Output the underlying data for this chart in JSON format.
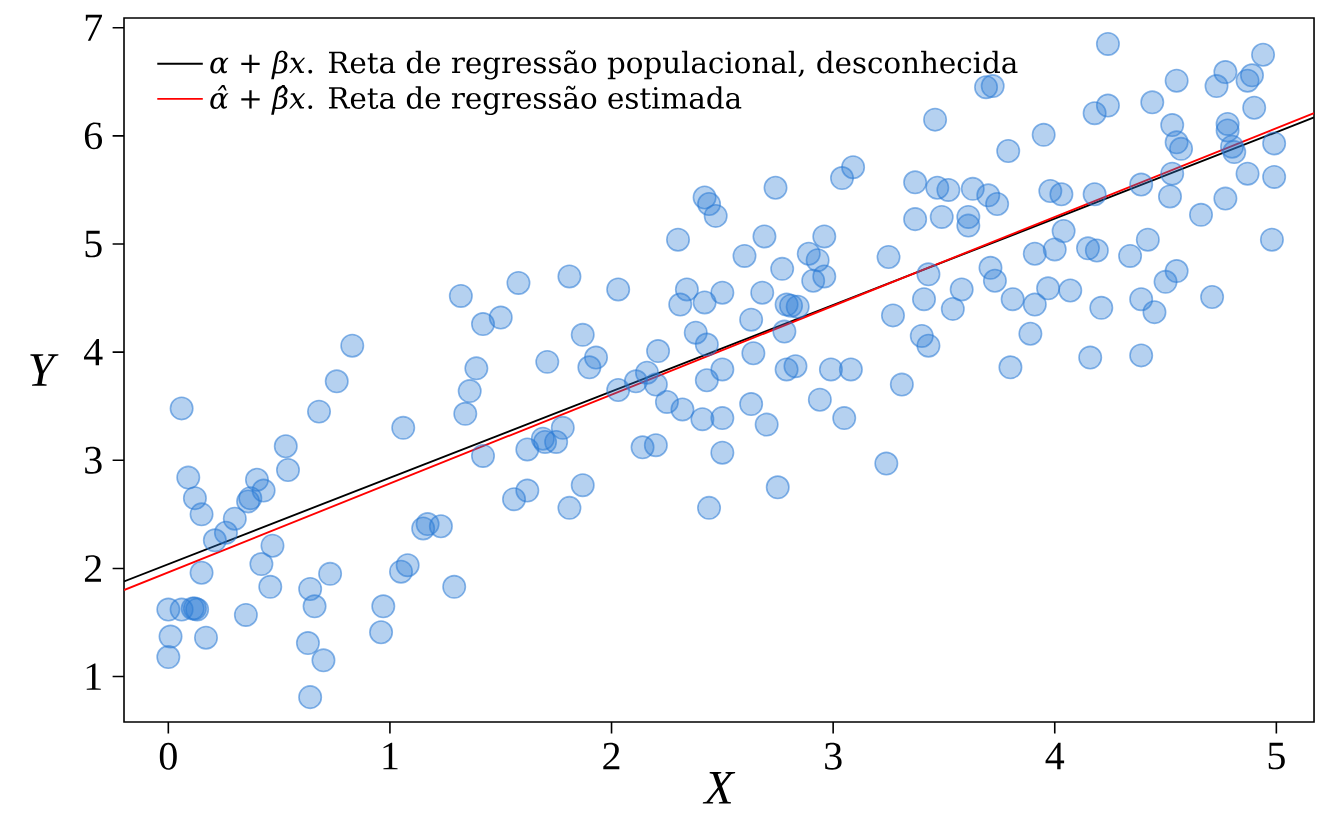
{
  "chart_data": {
    "type": "scatter",
    "xlabel": "X",
    "ylabel": "Y",
    "xlim": [
      -0.2,
      5.17
    ],
    "ylim": [
      0.58,
      7.09
    ],
    "xticks": [
      0,
      1,
      2,
      3,
      4,
      5
    ],
    "yticks": [
      1,
      2,
      3,
      4,
      5,
      6,
      7
    ],
    "legend": "top left",
    "line_style": "solid",
    "series": [
      {
        "color": "#2a7ad5",
        "x": [
          0.06,
          0.09,
          0.12,
          0.15,
          0.15,
          0.21,
          0.26,
          0.3,
          0.36,
          0.37,
          0.4,
          0.43,
          0.47,
          0.42,
          0.46,
          0.35,
          0.53,
          0.54,
          0.68,
          0.76,
          0.83,
          0.73,
          0.64,
          0.66,
          0.63,
          0.7,
          0.64,
          0.0,
          0.0,
          0.01,
          0.06,
          0.11,
          0.13,
          0.12,
          0.17,
          0.97,
          0.96,
          1.05,
          1.08,
          1.06,
          1.15,
          1.17,
          1.23,
          1.29,
          1.32,
          1.42,
          1.5,
          1.58,
          1.39,
          1.36,
          1.34,
          1.42,
          1.56,
          1.62,
          1.62,
          1.69,
          1.71,
          1.81,
          2.03,
          1.87,
          1.9,
          1.93,
          2.03,
          2.11,
          2.16,
          2.2,
          2.21,
          2.25,
          2.32,
          2.41,
          2.5,
          2.5,
          2.63,
          2.7,
          2.75,
          2.44,
          2.14,
          2.2,
          1.87,
          1.81,
          1.78,
          1.7,
          1.75,
          2.42,
          2.34,
          2.31,
          2.38,
          2.43,
          2.5,
          2.43,
          2.5,
          2.3,
          2.42,
          2.44,
          2.47,
          2.6,
          2.69,
          2.74,
          2.68,
          2.63,
          2.64,
          2.77,
          2.79,
          2.78,
          2.81,
          2.84,
          2.79,
          2.83,
          2.89,
          2.93,
          2.96,
          2.91,
          2.96,
          2.99,
          3.08,
          2.94,
          3.05,
          3.04,
          3.09,
          3.25,
          3.27,
          3.31,
          3.24,
          3.37,
          3.37,
          3.46,
          3.43,
          3.41,
          3.4,
          3.43,
          3.47,
          3.52,
          3.49,
          3.61,
          3.61,
          3.63,
          3.7,
          3.74,
          3.69,
          3.72,
          3.79,
          3.58,
          3.54,
          3.71,
          3.73,
          3.81,
          3.91,
          3.89,
          3.8,
          3.91,
          4.0,
          3.97,
          4.07,
          4.04,
          3.98,
          4.03,
          3.95,
          4.24,
          4.18,
          4.24,
          4.18,
          4.15,
          4.19,
          4.21,
          4.16,
          4.34,
          4.42,
          4.39,
          4.39,
          4.45,
          4.39,
          4.5,
          4.55,
          4.44,
          4.55,
          4.53,
          4.55,
          4.57,
          4.53,
          4.52,
          4.66,
          4.71,
          4.73,
          4.77,
          4.78,
          4.78,
          4.8,
          4.81,
          4.77,
          4.87,
          4.87,
          4.89,
          4.94,
          4.9,
          4.99,
          4.99,
          4.98
        ],
        "values": [
          3.48,
          2.84,
          2.65,
          2.5,
          1.96,
          2.26,
          2.33,
          2.46,
          2.62,
          2.65,
          2.82,
          2.72,
          2.21,
          2.04,
          1.83,
          1.57,
          3.13,
          2.91,
          3.45,
          3.73,
          4.06,
          1.95,
          1.81,
          1.65,
          1.31,
          1.15,
          0.81,
          1.62,
          1.18,
          1.37,
          1.62,
          1.63,
          1.62,
          1.63,
          1.36,
          1.65,
          1.41,
          1.97,
          2.03,
          3.3,
          2.37,
          2.41,
          2.39,
          1.83,
          4.52,
          4.26,
          4.32,
          4.64,
          3.85,
          3.64,
          3.43,
          3.04,
          2.64,
          2.72,
          3.1,
          3.2,
          3.91,
          4.7,
          4.58,
          4.16,
          3.86,
          3.95,
          3.65,
          3.73,
          3.81,
          3.7,
          4.01,
          3.54,
          3.47,
          3.38,
          3.39,
          3.07,
          3.52,
          3.33,
          2.75,
          2.56,
          3.12,
          3.14,
          2.77,
          2.56,
          3.3,
          3.17,
          3.17,
          4.46,
          4.58,
          4.44,
          4.18,
          4.07,
          3.84,
          3.74,
          4.55,
          5.04,
          5.43,
          5.37,
          5.26,
          4.89,
          5.07,
          5.52,
          4.55,
          4.3,
          3.99,
          4.77,
          4.44,
          4.19,
          4.43,
          4.42,
          3.84,
          3.87,
          4.91,
          4.85,
          5.07,
          4.66,
          4.7,
          3.84,
          3.84,
          3.56,
          3.39,
          5.61,
          5.71,
          4.88,
          4.34,
          3.7,
          2.97,
          5.57,
          5.23,
          6.15,
          4.72,
          4.49,
          4.15,
          4.06,
          5.52,
          5.5,
          5.25,
          5.25,
          5.17,
          5.51,
          5.45,
          5.37,
          6.45,
          6.46,
          5.86,
          4.58,
          4.4,
          4.78,
          4.66,
          4.49,
          4.44,
          4.17,
          3.86,
          4.91,
          4.95,
          4.59,
          4.57,
          5.12,
          5.49,
          5.46,
          6.01,
          6.85,
          6.21,
          6.28,
          5.46,
          4.96,
          4.94,
          4.41,
          3.95,
          4.89,
          5.04,
          5.55,
          4.49,
          4.37,
          3.97,
          4.65,
          4.75,
          6.31,
          6.51,
          6.1,
          5.94,
          5.88,
          5.65,
          5.44,
          5.27,
          4.51,
          6.46,
          6.59,
          6.11,
          6.05,
          5.9,
          5.85,
          5.42,
          5.65,
          6.51,
          6.56,
          6.75,
          6.26,
          5.93,
          5.62,
          5.04
        ]
      },
      {
        "type": "line",
        "name": "*α* + *βx*. Reta de regressão populacional, desconhecida",
        "color": "#000000",
        "marker": "none",
        "x": [
          -0.2,
          5.17
        ],
        "values": [
          1.88,
          6.17
        ]
      },
      {
        "type": "line",
        "name": "*α̂* + *β̂x*. Reta de regressão estimada",
        "color": "#ff0000",
        "marker": "none",
        "x": [
          -0.2,
          5.17
        ],
        "values": [
          1.8,
          6.21
        ]
      }
    ]
  }
}
